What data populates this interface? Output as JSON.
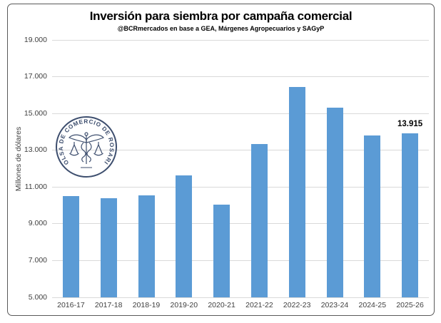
{
  "chart_data": {
    "type": "bar",
    "title": "Inversión para siembra por campaña comercial",
    "subtitle": "@BCRmercados en base a GEA, Márgenes Agropecuarios y SAGyP",
    "xlabel": "",
    "ylabel": "Millones de dólares",
    "categories": [
      "2016-17",
      "2017-18",
      "2018-19",
      "2019-20",
      "2020-21",
      "2021-22",
      "2022-23",
      "2023-24",
      "2024-25",
      "2025-26"
    ],
    "values": [
      10500,
      10400,
      10550,
      11650,
      10050,
      13350,
      16450,
      15300,
      13800,
      13915
    ],
    "ylim": [
      5000,
      19000
    ],
    "yticks": [
      {
        "value": 5000,
        "label": "5.000"
      },
      {
        "value": 7000,
        "label": "7.000"
      },
      {
        "value": 9000,
        "label": "9.000"
      },
      {
        "value": 11000,
        "label": "11.000"
      },
      {
        "value": 13000,
        "label": "13.000"
      },
      {
        "value": 15000,
        "label": "15.000"
      },
      {
        "value": 17000,
        "label": "17.000"
      },
      {
        "value": 19000,
        "label": "19.000"
      }
    ],
    "grid": true,
    "legend": null,
    "bar_color": "#5B9BD5",
    "annotations": [
      {
        "index": 9,
        "text": "13.915"
      }
    ]
  },
  "logo": {
    "text": "BOLSA DE COMERCIO DE ROSARIO",
    "color": "#3D4E6E"
  },
  "colors": {
    "bar": "#5B9BD5",
    "gridline": "#D9D9D9",
    "axis_text": "#404040",
    "frame_border": "#595959",
    "background": "#FFFFFF",
    "logo": "#3D4E6E"
  }
}
